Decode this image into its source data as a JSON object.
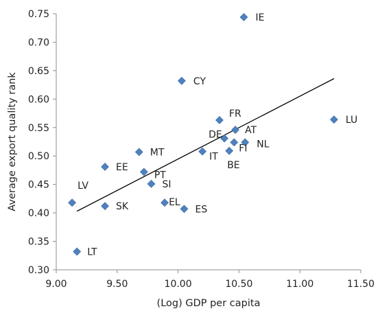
{
  "chart_data": {
    "type": "scatter",
    "xlabel": "(Log) GDP per capita",
    "ylabel": "Average export quality rank",
    "xlim": [
      9.0,
      11.5
    ],
    "ylim": [
      0.3,
      0.75
    ],
    "x_ticks": [
      "9.00",
      "9.50",
      "10.00",
      "10.50",
      "11.00",
      "11.50"
    ],
    "x_tick_values": [
      9.0,
      9.5,
      10.0,
      10.5,
      11.0,
      11.5
    ],
    "y_ticks": [
      "0.30",
      "0.35",
      "0.40",
      "0.45",
      "0.50",
      "0.55",
      "0.60",
      "0.65",
      "0.70",
      "0.75"
    ],
    "y_tick_values": [
      0.3,
      0.35,
      0.4,
      0.45,
      0.5,
      0.55,
      0.6,
      0.65,
      0.7,
      0.75
    ],
    "grid": false,
    "marker_color": "#4F81BD",
    "trendline": {
      "type": "linear",
      "x": [
        9.17,
        11.28
      ],
      "y": [
        0.403,
        0.636
      ],
      "color": "#000000"
    },
    "points": [
      {
        "label": "IE",
        "x": 10.54,
        "y": 0.744
      },
      {
        "label": "CY",
        "x": 10.03,
        "y": 0.632
      },
      {
        "label": "FR",
        "x": 10.34,
        "y": 0.563
      },
      {
        "label": "LU",
        "x": 11.28,
        "y": 0.564
      },
      {
        "label": "AT",
        "x": 10.47,
        "y": 0.546
      },
      {
        "label": "DE",
        "x": 10.38,
        "y": 0.531
      },
      {
        "label": "NL",
        "x": 10.55,
        "y": 0.524
      },
      {
        "label": "FI",
        "x": 10.46,
        "y": 0.524
      },
      {
        "label": "BE",
        "x": 10.42,
        "y": 0.509
      },
      {
        "label": "IT",
        "x": 10.2,
        "y": 0.508
      },
      {
        "label": "MT",
        "x": 9.68,
        "y": 0.507
      },
      {
        "label": "EE",
        "x": 9.4,
        "y": 0.481
      },
      {
        "label": "PT",
        "x": 9.72,
        "y": 0.472
      },
      {
        "label": "SI",
        "x": 9.78,
        "y": 0.451
      },
      {
        "label": "LV",
        "x": 9.13,
        "y": 0.418
      },
      {
        "label": "SK",
        "x": 9.4,
        "y": 0.412
      },
      {
        "label": "EL",
        "x": 9.89,
        "y": 0.418
      },
      {
        "label": "ES",
        "x": 10.05,
        "y": 0.407
      },
      {
        "label": "LT",
        "x": 9.17,
        "y": 0.332
      }
    ]
  }
}
